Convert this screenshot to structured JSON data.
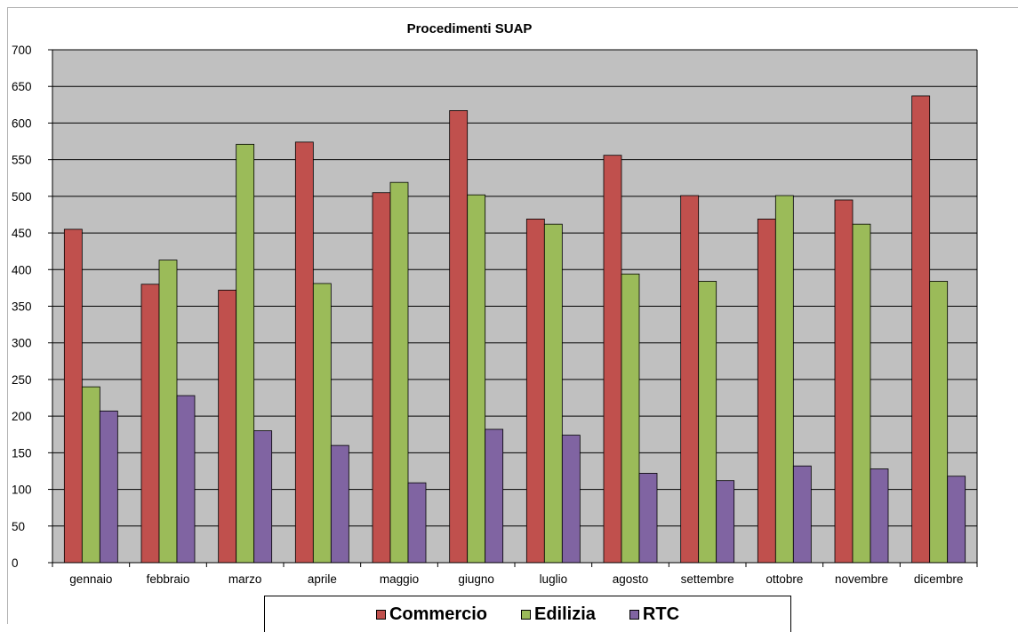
{
  "chart_data": {
    "type": "bar",
    "title": "Procedimenti SUAP",
    "xlabel": "",
    "ylabel": "",
    "ylim": [
      0,
      700
    ],
    "yticks": [
      0,
      50,
      100,
      150,
      200,
      250,
      300,
      350,
      400,
      450,
      500,
      550,
      600,
      650,
      700
    ],
    "grid": true,
    "legend_position": "bottom",
    "plot_background": "#c0c0c0",
    "categories": [
      "gennaio",
      "febbraio",
      "marzo",
      "aprile",
      "maggio",
      "giugno",
      "luglio",
      "agosto",
      "settembre",
      "ottobre",
      "novembre",
      "dicembre"
    ],
    "series": [
      {
        "name": "Commercio",
        "color": "#c0504d",
        "values": [
          455,
          380,
          372,
          574,
          505,
          617,
          469,
          556,
          501,
          469,
          495,
          637
        ]
      },
      {
        "name": "Edilizia",
        "color": "#9bbb59",
        "values": [
          240,
          413,
          571,
          381,
          519,
          502,
          462,
          394,
          384,
          501,
          462,
          384
        ]
      },
      {
        "name": "RTC",
        "color": "#8064a2",
        "values": [
          207,
          228,
          180,
          160,
          109,
          182,
          174,
          122,
          112,
          132,
          128,
          118
        ]
      }
    ]
  }
}
